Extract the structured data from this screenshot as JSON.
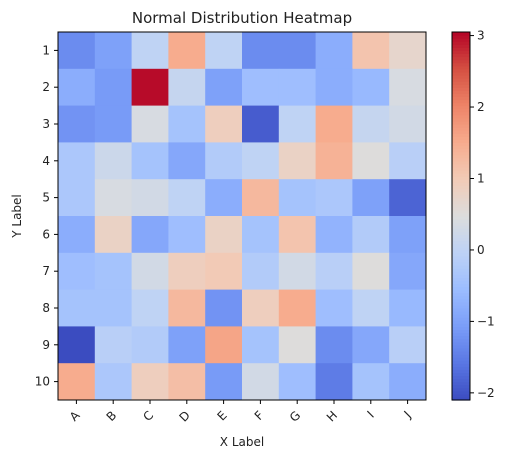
{
  "chart_data": {
    "type": "heatmap",
    "title": "Normal Distribution Heatmap",
    "xlabel": "X Label",
    "ylabel": "Y Label",
    "x_categories": [
      "A",
      "B",
      "C",
      "D",
      "E",
      "F",
      "G",
      "H",
      "I",
      "J"
    ],
    "y_categories": [
      "1",
      "2",
      "3",
      "4",
      "5",
      "6",
      "7",
      "8",
      "9",
      "10"
    ],
    "values": [
      [
        -1.3,
        -1.0,
        0.0,
        1.5,
        0.0,
        -1.3,
        -1.3,
        -0.8,
        1.1,
        0.7
      ],
      [
        -0.8,
        -1.1,
        3.0,
        0.1,
        -1.0,
        -0.5,
        -0.5,
        -0.8,
        -0.6,
        0.4
      ],
      [
        -1.2,
        -1.1,
        0.4,
        -0.4,
        0.9,
        -1.9,
        0.0,
        1.5,
        0.1,
        0.3
      ],
      [
        -0.3,
        0.2,
        -0.4,
        -0.9,
        -0.2,
        0.0,
        0.8,
        1.4,
        0.5,
        -0.1
      ],
      [
        -0.3,
        0.4,
        0.3,
        0.0,
        -0.8,
        1.3,
        -0.4,
        -0.3,
        -1.0,
        -1.8
      ],
      [
        -0.8,
        0.8,
        -0.9,
        -0.5,
        0.8,
        -0.4,
        1.1,
        -0.7,
        -0.2,
        -1.0
      ],
      [
        -0.5,
        -0.4,
        0.3,
        0.9,
        1.0,
        -0.2,
        0.3,
        -0.1,
        0.5,
        -0.9
      ],
      [
        -0.4,
        -0.4,
        0.0,
        1.3,
        -1.2,
        0.9,
        1.5,
        -0.5,
        0.0,
        -0.6
      ],
      [
        -2.1,
        -0.1,
        -0.2,
        -1.0,
        1.6,
        -0.4,
        0.5,
        -1.3,
        -0.9,
        -0.1
      ],
      [
        1.5,
        -0.3,
        0.9,
        1.2,
        -1.1,
        0.3,
        -0.5,
        -1.5,
        -0.4,
        -0.8
      ]
    ],
    "vmin": -2.1,
    "vmax": 3.05,
    "colormap": "coolwarm",
    "colorbar_ticks": [
      -2,
      -1,
      0,
      1,
      2,
      3
    ],
    "colorbar_tick_labels": [
      "−2",
      "−1",
      "0",
      "1",
      "2",
      "3"
    ],
    "x_tick_rotation": 45,
    "grid": false
  }
}
